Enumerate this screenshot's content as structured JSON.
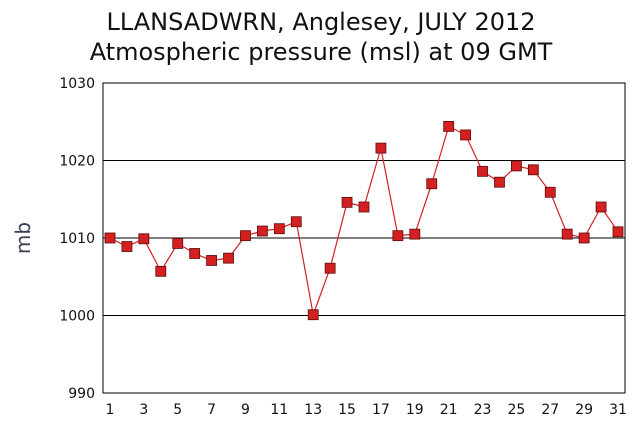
{
  "chart_data": {
    "type": "line",
    "title": "LLANSADWRN, Anglesey,  JULY 2012",
    "subtitle": "Atmospheric pressure  (msl) at 09 GMT",
    "xlabel": "",
    "ylabel": "mb",
    "xlim": [
      1,
      31
    ],
    "ylim": [
      990,
      1030
    ],
    "y_ticks": [
      990,
      1000,
      1010,
      1020,
      1030
    ],
    "x_tick_labels": [
      1,
      3,
      5,
      7,
      9,
      11,
      13,
      15,
      17,
      19,
      21,
      23,
      25,
      27,
      29,
      31
    ],
    "grid": "horizontal",
    "series_color": "#d42020",
    "x": [
      1,
      2,
      3,
      4,
      5,
      6,
      7,
      8,
      9,
      10,
      11,
      12,
      13,
      14,
      15,
      16,
      17,
      18,
      19,
      20,
      21,
      22,
      23,
      24,
      25,
      26,
      27,
      28,
      29,
      30,
      31
    ],
    "values": [
      1010.0,
      1008.9,
      1009.9,
      1005.7,
      1009.3,
      1008.0,
      1007.1,
      1007.4,
      1010.3,
      1010.9,
      1011.2,
      1012.1,
      1000.1,
      1006.1,
      1014.6,
      1014.0,
      1021.6,
      1010.3,
      1010.5,
      1017.0,
      1024.4,
      1023.3,
      1018.6,
      1017.2,
      1019.3,
      1018.8,
      1015.9,
      1010.5,
      1010.0,
      1014.0,
      1010.8
    ]
  }
}
